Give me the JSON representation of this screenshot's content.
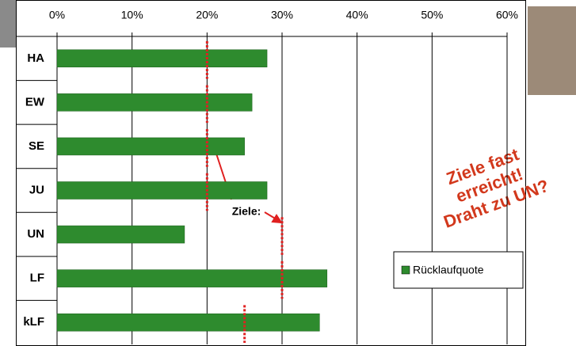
{
  "chart_data": {
    "type": "bar",
    "orientation": "horizontal",
    "categories": [
      "HA",
      "EW",
      "SE",
      "JU",
      "UN",
      "LF",
      "kLF"
    ],
    "series": [
      {
        "name": "Rücklaufquote",
        "color": "#2e8b2e",
        "values": [
          28,
          26,
          25,
          28,
          17,
          36,
          35
        ]
      }
    ],
    "targets": [
      20,
      20,
      20,
      20,
      30,
      30,
      25
    ],
    "target_color": "#e02020",
    "target_label": "Ziele:",
    "annotation": [
      "Ziele fast",
      "erreicht!",
      "Draht zu UN?"
    ],
    "xlim": [
      0,
      60
    ],
    "xticks": [
      {
        "value": 0,
        "label": "0%"
      },
      {
        "value": 10,
        "label": "10%"
      },
      {
        "value": 20,
        "label": "20%"
      },
      {
        "value": 30,
        "label": "30%"
      },
      {
        "value": 40,
        "label": "40%"
      },
      {
        "value": 50,
        "label": "50%"
      },
      {
        "value": 60,
        "label": "60%"
      }
    ],
    "grid": true,
    "legend": "lower right"
  }
}
